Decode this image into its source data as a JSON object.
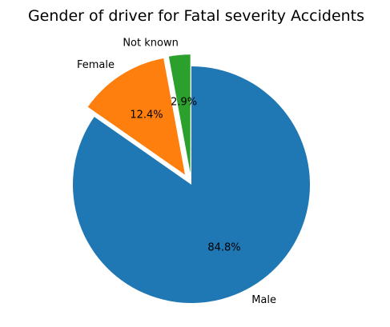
{
  "chart_data": {
    "type": "pie",
    "title": "Gender of driver for Fatal severity Accidents",
    "slices": [
      {
        "label": "Male",
        "value": 84.8,
        "pct_label": "84.8%",
        "color": "#1f77b4"
      },
      {
        "label": "Female",
        "value": 12.4,
        "pct_label": "12.4%",
        "color": "#ff7f0e",
        "exploded": true
      },
      {
        "label": "Not known",
        "value": 2.9,
        "pct_label": "2.9%",
        "color": "#2ca02c",
        "exploded": true
      }
    ],
    "start_angle_deg": 90,
    "direction": "clockwise"
  }
}
